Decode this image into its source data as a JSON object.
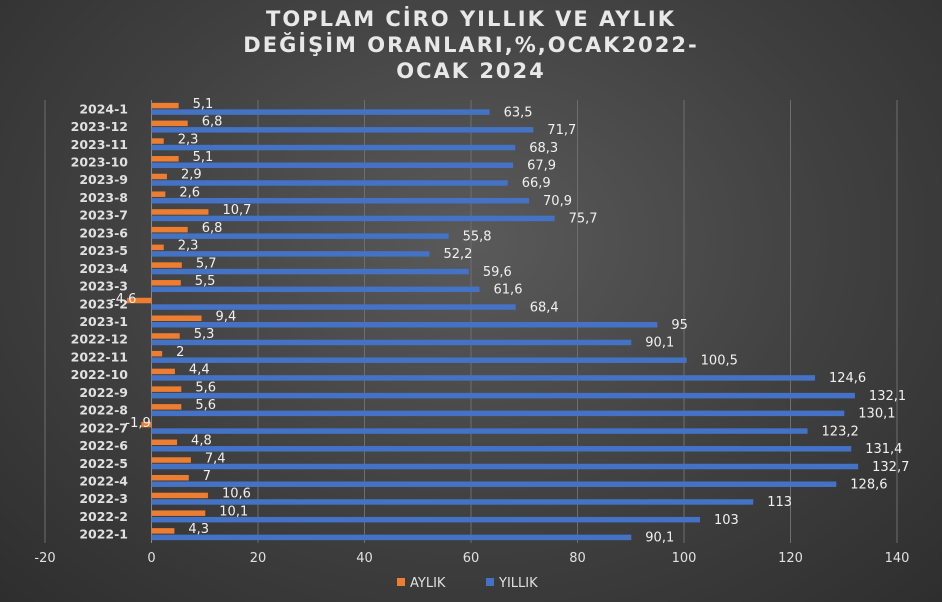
{
  "chart_data": {
    "type": "bar",
    "orientation": "horizontal",
    "title": "TOPLAM CİRO YILLIK VE AYLIK\nDEĞİŞİM ORANLARI,%,OCAK2022-\nOCAK 2024",
    "categories": [
      "2022-1",
      "2022-2",
      "2022-3",
      "2022-4",
      "2022-5",
      "2022-6",
      "2022-7",
      "2022-8",
      "2022-9",
      "2022-10",
      "2022-11",
      "2022-12",
      "2023-1",
      "2023-2",
      "2023-3",
      "2023-4",
      "2023-5",
      "2023-6",
      "2023-7",
      "2023-8",
      "2023-9",
      "2023-10",
      "2023-11",
      "2023-12",
      "2024-1"
    ],
    "series": [
      {
        "name": "AYLIK",
        "color": "#ed7d31",
        "values": [
          4.3,
          10.1,
          10.6,
          7,
          7.4,
          4.8,
          -1.9,
          5.6,
          5.6,
          4.4,
          2,
          5.3,
          9.4,
          -4.6,
          5.5,
          5.7,
          2.3,
          6.8,
          10.7,
          2.6,
          2.9,
          5.1,
          2.3,
          6.8,
          5.1
        ],
        "labels": [
          "4,3",
          "10,1",
          "10,6",
          "7",
          "7,4",
          "4,8",
          "-1,9",
          "5,6",
          "5,6",
          "4,4",
          "2",
          "5,3",
          "9,4",
          "-4,6",
          "5,5",
          "5,7",
          "2,3",
          "6,8",
          "10,7",
          "2,6",
          "2,9",
          "5,1",
          "2,3",
          "6,8",
          "5,1"
        ]
      },
      {
        "name": "YILLIK",
        "color": "#4472c4",
        "values": [
          90.1,
          103,
          113,
          128.6,
          132.7,
          131.4,
          123.2,
          130.1,
          132.1,
          124.6,
          100.5,
          90.1,
          95,
          68.4,
          61.6,
          59.6,
          52.2,
          55.8,
          75.7,
          70.9,
          66.9,
          67.9,
          68.3,
          71.7,
          63.5
        ],
        "labels": [
          "90,1",
          "103",
          "113",
          "128,6",
          "132,7",
          "131,4",
          "123,2",
          "130,1",
          "132,1",
          "124,6",
          "100,5",
          "90,1",
          "95",
          "68,4",
          "61,6",
          "59,6",
          "52,2",
          "55,8",
          "75,7",
          "70,9",
          "66,9",
          "67,9",
          "68,3",
          "71,7",
          "63,5"
        ]
      }
    ],
    "xlim": [
      -20,
      140
    ],
    "xticks": [
      "-20",
      "0",
      "20",
      "40",
      "60",
      "80",
      "100",
      "120",
      "140"
    ],
    "xtick_values": [
      -20,
      0,
      20,
      40,
      60,
      80,
      100,
      120,
      140
    ],
    "grid": true,
    "legend_position": "bottom"
  }
}
